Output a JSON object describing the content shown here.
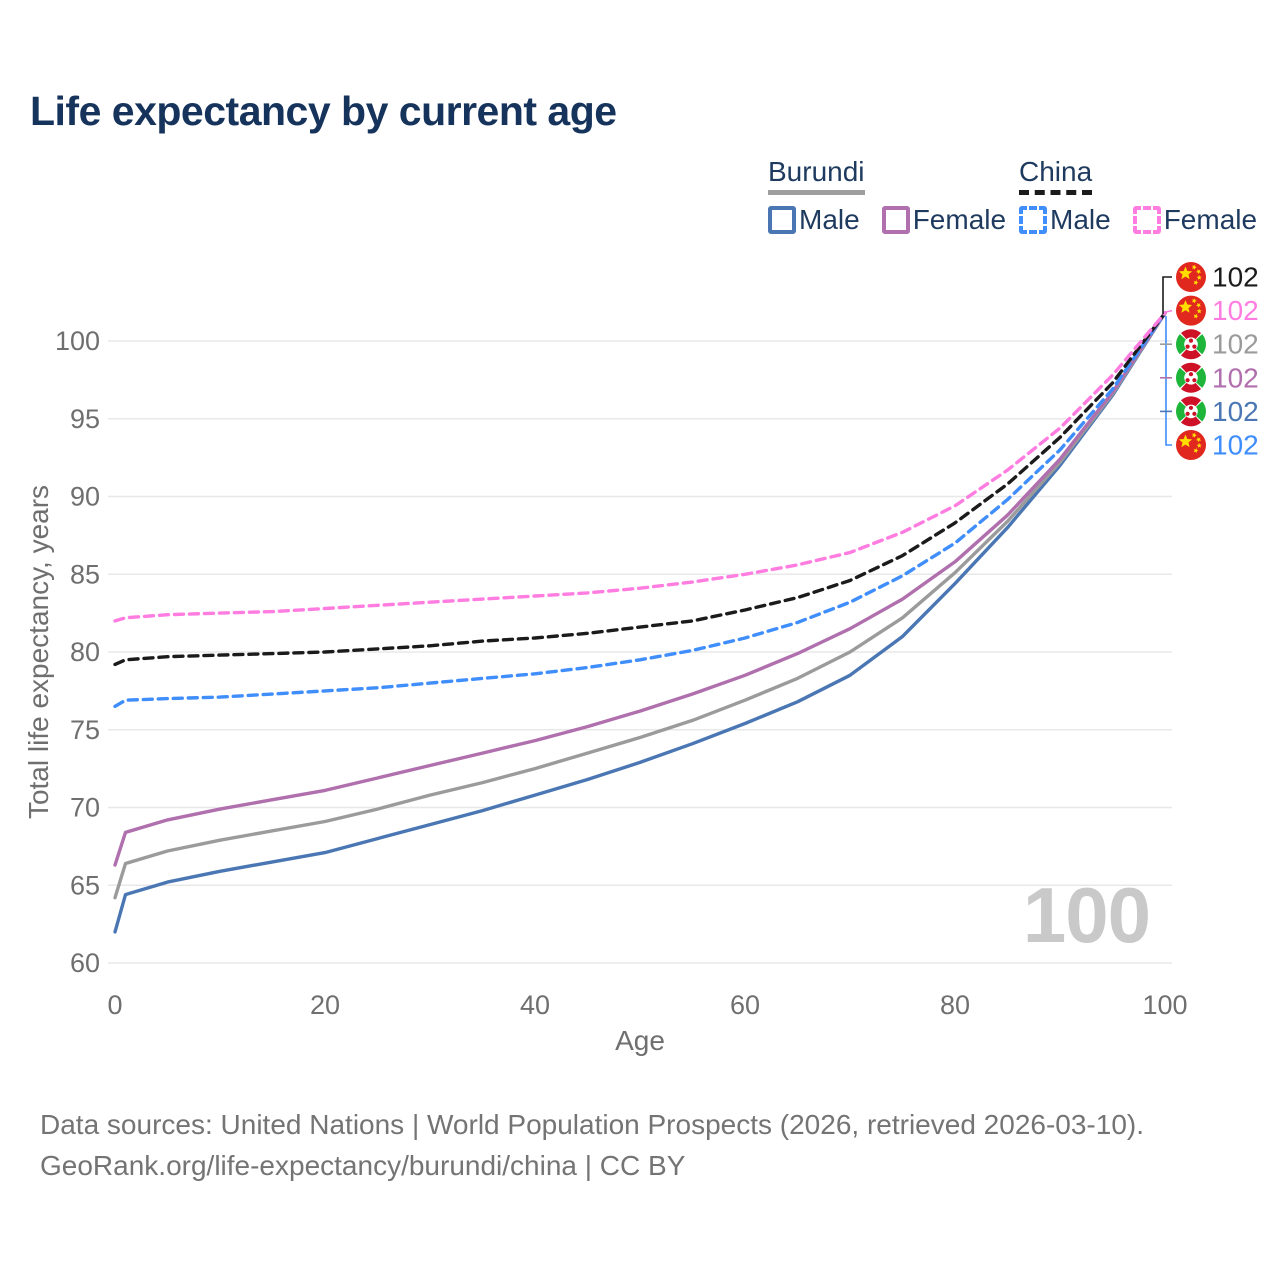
{
  "title": "Life expectancy by current age",
  "legend": {
    "groups": [
      {
        "name": "Burundi",
        "line_style": "solid",
        "line_color": "#9e9e9e",
        "items": [
          {
            "label": "Male",
            "color": "#4a77b4",
            "style": "solid"
          },
          {
            "label": "Female",
            "color": "#b06fad",
            "style": "solid"
          }
        ]
      },
      {
        "name": "China",
        "line_style": "dashed",
        "line_color": "#1b1b1b",
        "items": [
          {
            "label": "Male",
            "color": "#3f8efc",
            "style": "dashed"
          },
          {
            "label": "Female",
            "color": "#ff7ce0",
            "style": "dashed"
          }
        ]
      }
    ]
  },
  "current_age_indicator": "100",
  "footer": {
    "line1": "Data sources: United Nations | World Population Prospects (2026, retrieved 2026-03-10).",
    "line2": "GeoRank.org/life-expectancy/burundi/china | CC BY"
  },
  "chart_data": {
    "type": "line",
    "title": "Life expectancy by current age",
    "xlabel": "Age",
    "ylabel": "Total life expectancy, years",
    "xlim": [
      0,
      100
    ],
    "ylim": [
      60,
      102.5
    ],
    "xticks": [
      0,
      20,
      40,
      60,
      80,
      100
    ],
    "yticks": [
      60,
      65,
      70,
      75,
      80,
      85,
      90,
      95,
      100
    ],
    "grid": "horizontal",
    "legend_position": "top-right",
    "x": [
      0,
      1,
      5,
      10,
      15,
      20,
      25,
      30,
      35,
      40,
      45,
      50,
      55,
      60,
      65,
      70,
      75,
      80,
      85,
      90,
      95,
      100
    ],
    "series": [
      {
        "name": "Burundi Male",
        "country": "Burundi",
        "sex": "male",
        "color": "#4a77b4",
        "line": "solid",
        "values": [
          62.0,
          64.4,
          65.2,
          65.9,
          66.5,
          67.1,
          68.0,
          68.9,
          69.8,
          70.8,
          71.8,
          72.9,
          74.1,
          75.4,
          76.8,
          78.5,
          81.0,
          84.4,
          88.0,
          92.0,
          96.5,
          101.8
        ]
      },
      {
        "name": "Burundi Both sexes",
        "country": "Burundi",
        "sex": "both",
        "color": "#9b9b9b",
        "line": "solid",
        "values": [
          64.2,
          66.4,
          67.2,
          67.9,
          68.5,
          69.1,
          69.9,
          70.8,
          71.6,
          72.5,
          73.5,
          74.5,
          75.6,
          76.9,
          78.3,
          80.0,
          82.2,
          85.1,
          88.4,
          92.2,
          96.6,
          101.8
        ]
      },
      {
        "name": "Burundi Female",
        "country": "Burundi",
        "sex": "female",
        "color": "#b06fad",
        "line": "solid",
        "values": [
          66.3,
          68.4,
          69.2,
          69.9,
          70.5,
          71.1,
          71.9,
          72.7,
          73.5,
          74.3,
          75.2,
          76.2,
          77.3,
          78.5,
          79.9,
          81.5,
          83.4,
          85.8,
          88.8,
          92.4,
          96.7,
          101.8
        ]
      },
      {
        "name": "China Male",
        "country": "China",
        "sex": "male",
        "color": "#3f8efc",
        "line": "dashed",
        "values": [
          76.5,
          76.9,
          77.0,
          77.1,
          77.3,
          77.5,
          77.7,
          78.0,
          78.3,
          78.6,
          79.0,
          79.5,
          80.1,
          80.9,
          81.9,
          83.2,
          84.9,
          87.0,
          89.8,
          93.0,
          96.9,
          101.8
        ]
      },
      {
        "name": "China Both sexes",
        "country": "China",
        "sex": "both",
        "color": "#1b1b1b",
        "line": "dashed",
        "values": [
          79.2,
          79.5,
          79.7,
          79.8,
          79.9,
          80.0,
          80.2,
          80.4,
          80.7,
          80.9,
          81.2,
          81.6,
          82.0,
          82.7,
          83.5,
          84.6,
          86.2,
          88.3,
          90.8,
          93.8,
          97.3,
          101.8
        ]
      },
      {
        "name": "China Female",
        "country": "China",
        "sex": "female",
        "color": "#ff7ce0",
        "line": "dashed",
        "values": [
          82.0,
          82.2,
          82.4,
          82.5,
          82.6,
          82.8,
          83.0,
          83.2,
          83.4,
          83.6,
          83.8,
          84.1,
          84.5,
          85.0,
          85.6,
          86.4,
          87.7,
          89.4,
          91.7,
          94.4,
          97.8,
          101.8
        ]
      }
    ],
    "end_labels": [
      {
        "text": "102",
        "flag": "china",
        "color": "#1b1b1b"
      },
      {
        "text": "102",
        "flag": "china",
        "color": "#ff7ce0"
      },
      {
        "text": "102",
        "flag": "burundi",
        "color": "#9b9b9b"
      },
      {
        "text": "102",
        "flag": "burundi",
        "color": "#b06fad"
      },
      {
        "text": "102",
        "flag": "burundi",
        "color": "#4a77b4"
      },
      {
        "text": "102",
        "flag": "china",
        "color": "#3f8efc"
      }
    ]
  }
}
